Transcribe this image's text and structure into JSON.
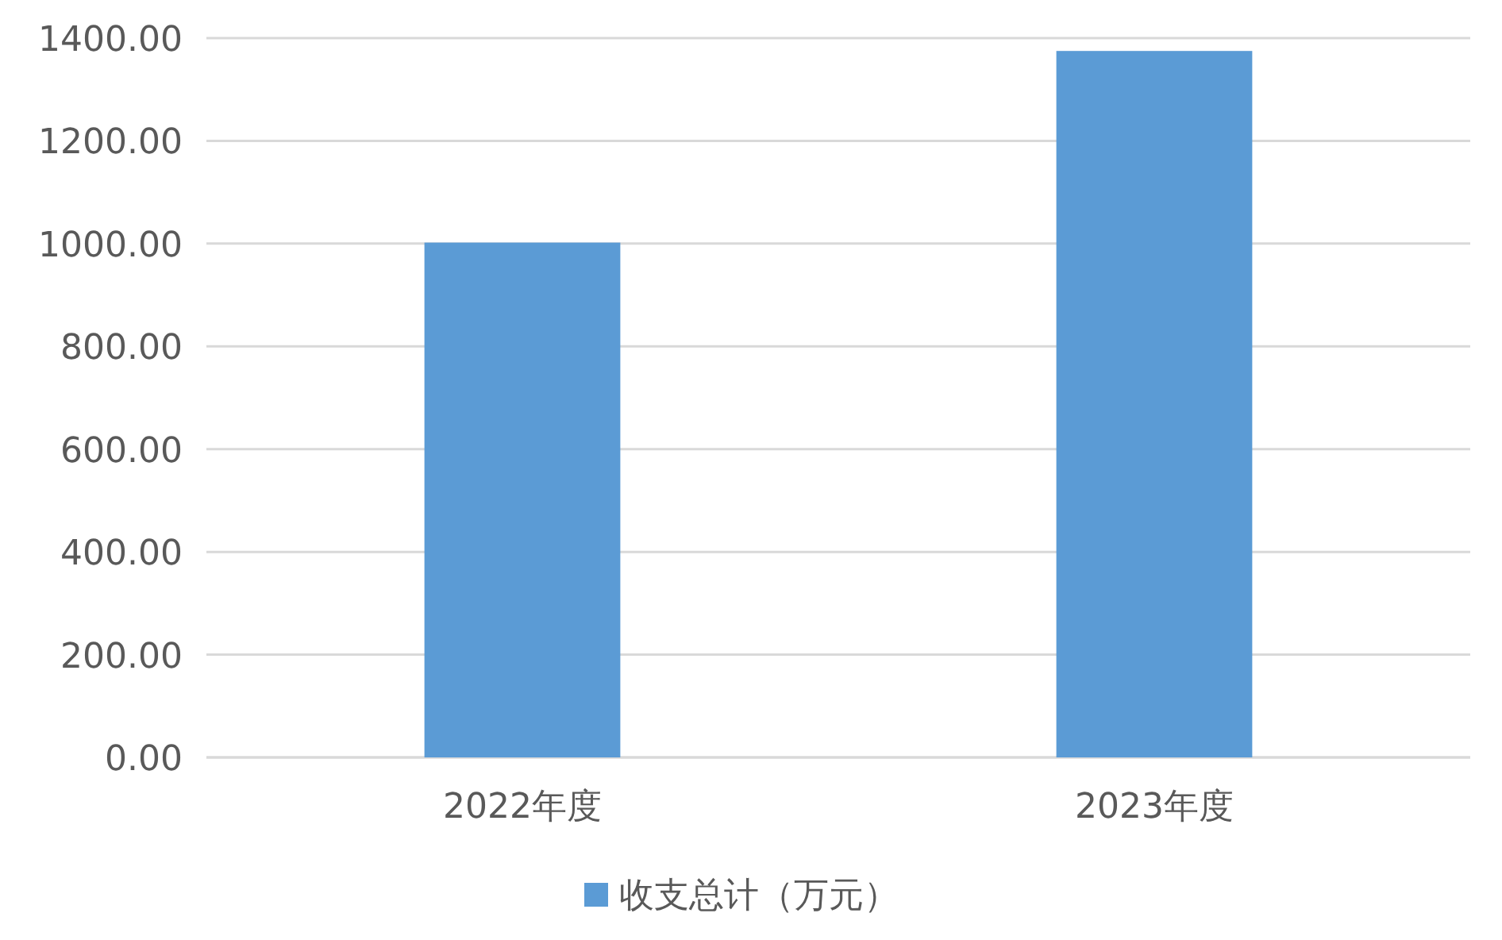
{
  "chart_data": {
    "type": "bar",
    "categories": [
      "2022年度",
      "2023年度"
    ],
    "series": [
      {
        "name": "收支总计（万元）",
        "color": "#5b9bd5",
        "values": [
          1002,
          1375
        ]
      }
    ],
    "ylim": [
      0,
      1400
    ],
    "yticks": [
      {
        "value": 0,
        "label": "0.00"
      },
      {
        "value": 200,
        "label": "200.00"
      },
      {
        "value": 400,
        "label": "400.00"
      },
      {
        "value": 600,
        "label": "600.00"
      },
      {
        "value": 800,
        "label": "800.00"
      },
      {
        "value": 1000,
        "label": "1000.00"
      },
      {
        "value": 1200,
        "label": "1200.00"
      },
      {
        "value": 1400,
        "label": "1400.00"
      }
    ],
    "grid": "y",
    "legend": "bottom"
  }
}
